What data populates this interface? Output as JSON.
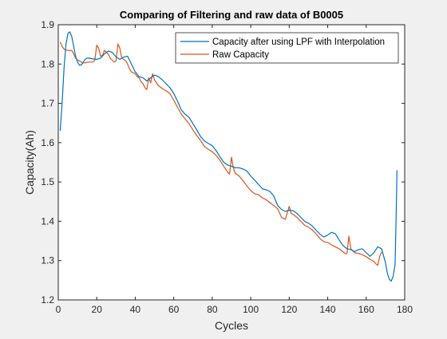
{
  "chart_data": {
    "type": "line",
    "title": "Comparing of Filtering and raw data of B0005",
    "xlabel": "Cycles",
    "ylabel": "Capacity(Ah)",
    "xlim": [
      0,
      180
    ],
    "ylim": [
      1.2,
      1.9
    ],
    "xticks": [
      0,
      20,
      40,
      60,
      80,
      100,
      120,
      140,
      160,
      180
    ],
    "yticks": [
      1.2,
      1.3,
      1.4,
      1.5,
      1.6,
      1.7,
      1.8,
      1.9
    ],
    "grid": false,
    "legend_position": "top-right",
    "series": [
      {
        "name": "Capacity after using LPF with Interpolation",
        "color": "#0072BD",
        "x": [
          1,
          2,
          3,
          4,
          5,
          6,
          7,
          8,
          9,
          10,
          11,
          12,
          13,
          14,
          15,
          16,
          18,
          20,
          22,
          24,
          26,
          28,
          30,
          32,
          34,
          36,
          38,
          40,
          42,
          44,
          46,
          48,
          50,
          52,
          54,
          56,
          58,
          60,
          62,
          64,
          66,
          68,
          70,
          72,
          74,
          76,
          78,
          80,
          82,
          84,
          86,
          88,
          90,
          92,
          94,
          96,
          98,
          100,
          102,
          104,
          106,
          108,
          110,
          112,
          114,
          116,
          118,
          120,
          122,
          124,
          126,
          128,
          130,
          132,
          134,
          136,
          138,
          140,
          142,
          144,
          146,
          148,
          150,
          152,
          154,
          156,
          158,
          160,
          162,
          164,
          166,
          168,
          170,
          171,
          172,
          173,
          174,
          175
        ],
        "y": [
          1.63,
          1.7,
          1.79,
          1.85,
          1.878,
          1.882,
          1.87,
          1.845,
          1.82,
          1.805,
          1.797,
          1.798,
          1.805,
          1.812,
          1.815,
          1.815,
          1.813,
          1.812,
          1.815,
          1.826,
          1.833,
          1.83,
          1.818,
          1.812,
          1.818,
          1.82,
          1.8,
          1.78,
          1.768,
          1.765,
          1.757,
          1.765,
          1.772,
          1.768,
          1.76,
          1.75,
          1.74,
          1.725,
          1.705,
          1.683,
          1.672,
          1.664,
          1.648,
          1.632,
          1.615,
          1.604,
          1.598,
          1.592,
          1.58,
          1.564,
          1.55,
          1.543,
          1.54,
          1.536,
          1.536,
          1.533,
          1.528,
          1.515,
          1.505,
          1.494,
          1.483,
          1.48,
          1.476,
          1.464,
          1.44,
          1.43,
          1.425,
          1.428,
          1.427,
          1.42,
          1.41,
          1.4,
          1.395,
          1.388,
          1.377,
          1.367,
          1.36,
          1.365,
          1.372,
          1.368,
          1.352,
          1.338,
          1.33,
          1.328,
          1.323,
          1.328,
          1.33,
          1.32,
          1.311,
          1.32,
          1.335,
          1.33,
          1.295,
          1.268,
          1.252,
          1.248,
          1.26,
          1.29
        ],
        "extension": {
          "x": [
            175,
            175.5,
            176
          ],
          "y": [
            1.29,
            1.4,
            1.53
          ]
        }
      },
      {
        "name": "Raw Capacity",
        "color": "#D95319",
        "x": [
          1,
          2,
          3,
          4,
          5,
          6,
          7,
          8,
          9,
          10,
          11,
          12,
          13,
          14,
          15,
          16,
          18,
          19,
          20,
          21,
          22,
          23,
          24,
          25,
          26,
          27,
          28,
          29,
          30,
          31,
          32,
          33,
          34,
          35,
          36,
          37,
          38,
          39,
          40,
          41,
          42,
          43,
          44,
          45,
          46,
          47,
          48,
          49,
          50,
          52,
          54,
          56,
          58,
          60,
          62,
          64,
          66,
          68,
          70,
          72,
          74,
          76,
          78,
          80,
          82,
          84,
          86,
          88,
          89,
          90,
          91,
          92,
          94,
          96,
          98,
          100,
          102,
          104,
          106,
          108,
          110,
          112,
          114,
          116,
          118,
          120,
          121,
          122,
          124,
          126,
          128,
          130,
          132,
          134,
          136,
          138,
          140,
          142,
          144,
          146,
          148,
          149,
          150,
          151,
          152,
          154,
          156,
          158,
          160,
          162,
          164,
          165,
          166,
          167,
          168
        ],
        "y": [
          1.856,
          1.845,
          1.838,
          1.835,
          1.835,
          1.834,
          1.835,
          1.826,
          1.815,
          1.81,
          1.808,
          1.805,
          1.803,
          1.803,
          1.805,
          1.805,
          1.805,
          1.81,
          1.848,
          1.84,
          1.82,
          1.822,
          1.835,
          1.83,
          1.825,
          1.815,
          1.81,
          1.805,
          1.808,
          1.851,
          1.84,
          1.815,
          1.812,
          1.808,
          1.8,
          1.788,
          1.78,
          1.778,
          1.775,
          1.768,
          1.765,
          1.755,
          1.75,
          1.74,
          1.735,
          1.765,
          1.752,
          1.775,
          1.76,
          1.745,
          1.738,
          1.732,
          1.725,
          1.708,
          1.69,
          1.672,
          1.66,
          1.648,
          1.632,
          1.618,
          1.605,
          1.59,
          1.583,
          1.577,
          1.568,
          1.555,
          1.54,
          1.525,
          1.52,
          1.563,
          1.535,
          1.522,
          1.515,
          1.503,
          1.49,
          1.478,
          1.47,
          1.468,
          1.46,
          1.455,
          1.447,
          1.44,
          1.432,
          1.41,
          1.405,
          1.438,
          1.42,
          1.418,
          1.41,
          1.4,
          1.39,
          1.385,
          1.378,
          1.368,
          1.356,
          1.348,
          1.346,
          1.34,
          1.335,
          1.33,
          1.322,
          1.318,
          1.318,
          1.362,
          1.33,
          1.32,
          1.318,
          1.315,
          1.31,
          1.303,
          1.298,
          1.292,
          1.288,
          1.31,
          1.322
        ]
      }
    ]
  }
}
